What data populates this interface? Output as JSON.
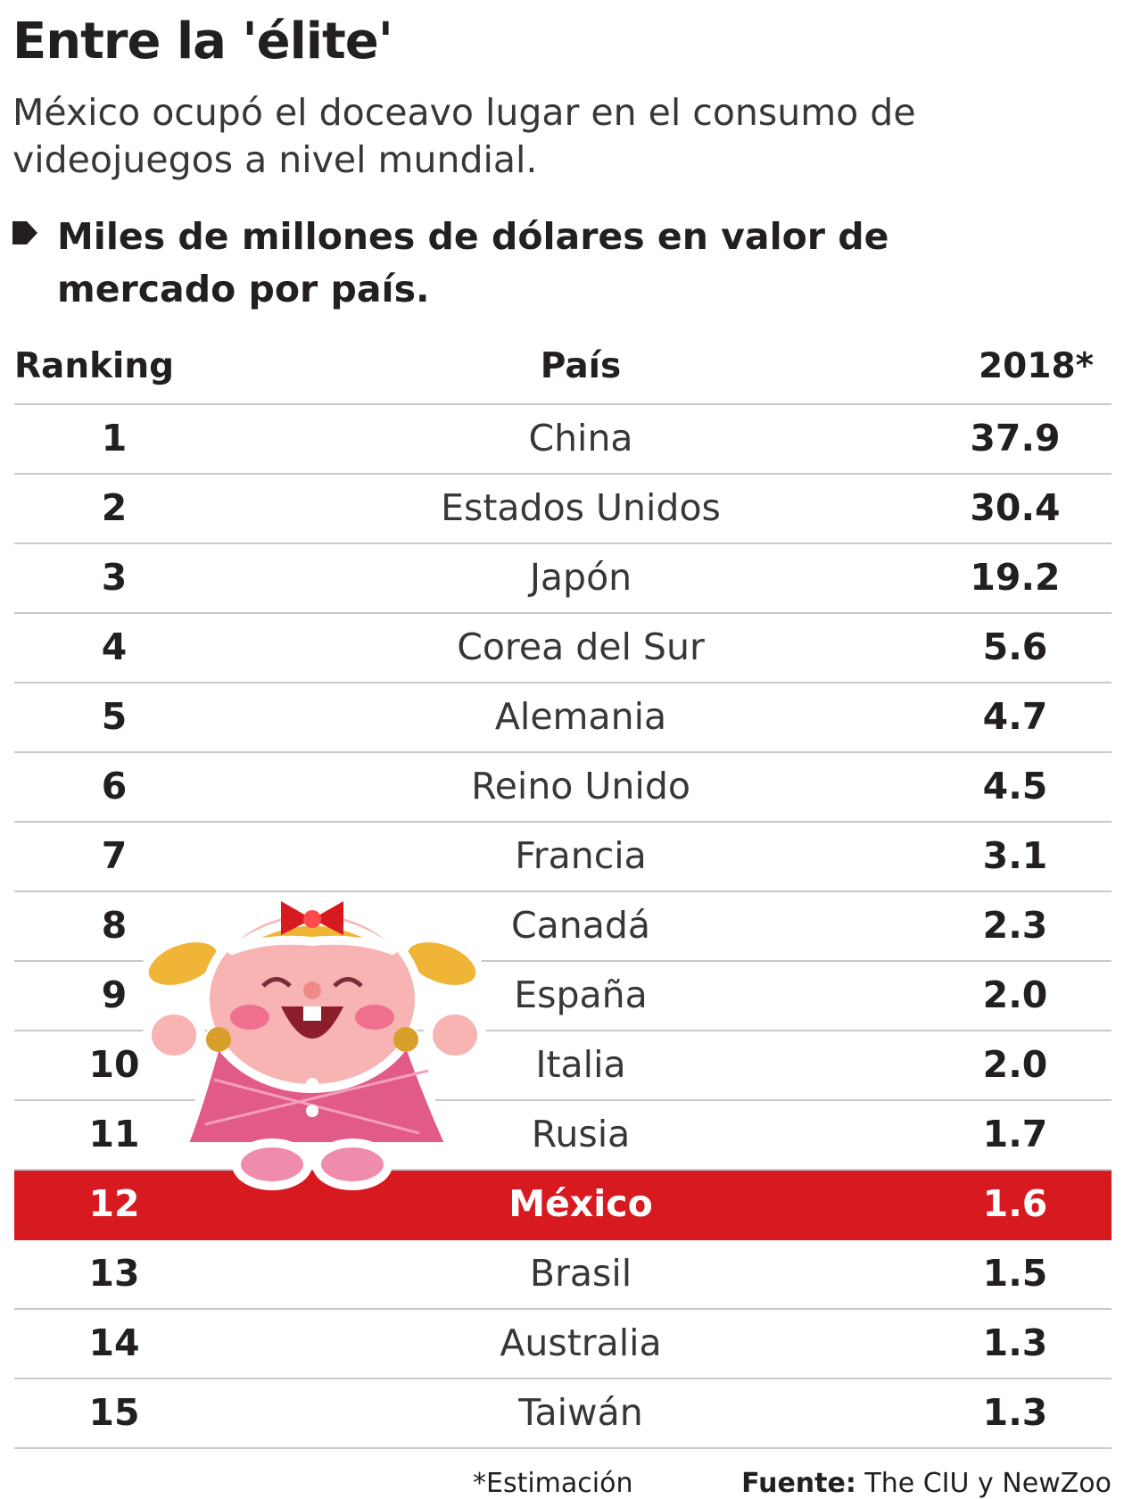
{
  "title": "Entre la 'élite'",
  "subtitle": "México ocupó el doceavo lugar en el consumo de videojuegos a nivel mundial.",
  "unit_label": "Miles de millones de dólares en valor de mercado por país.",
  "colors": {
    "highlight": "#d71920",
    "text": "#231f20",
    "rule": "#c9c9c9"
  },
  "chart_data": {
    "type": "table",
    "columns": [
      "Ranking",
      "País",
      "2018*"
    ],
    "rows": [
      {
        "rank": "1",
        "country": "China",
        "value": 37.9
      },
      {
        "rank": "2",
        "country": "Estados Unidos",
        "value": 30.4
      },
      {
        "rank": "3",
        "country": "Japón",
        "value": 19.2
      },
      {
        "rank": "4",
        "country": "Corea del Sur",
        "value": 5.6
      },
      {
        "rank": "5",
        "country": "Alemania",
        "value": 4.7
      },
      {
        "rank": "6",
        "country": "Reino Unido",
        "value": 4.5
      },
      {
        "rank": "7",
        "country": "Francia",
        "value": 3.1
      },
      {
        "rank": "8",
        "country": "Canadá",
        "value": 2.3
      },
      {
        "rank": "9",
        "country": "España",
        "value": 2.0
      },
      {
        "rank": "10",
        "country": "Italia",
        "value": 2.0
      },
      {
        "rank": "11",
        "country": "Rusia",
        "value": 1.7
      },
      {
        "rank": "12",
        "country": "México",
        "value": 1.6,
        "highlight": true
      },
      {
        "rank": "13",
        "country": "Brasil",
        "value": 1.5
      },
      {
        "rank": "14",
        "country": "Australia",
        "value": 1.3
      },
      {
        "rank": "15",
        "country": "Taiwán",
        "value": 1.3
      }
    ]
  },
  "footer": {
    "note": "*Estimación",
    "source_label": "Fuente:",
    "source_text": "The CIU y NewZoo"
  }
}
